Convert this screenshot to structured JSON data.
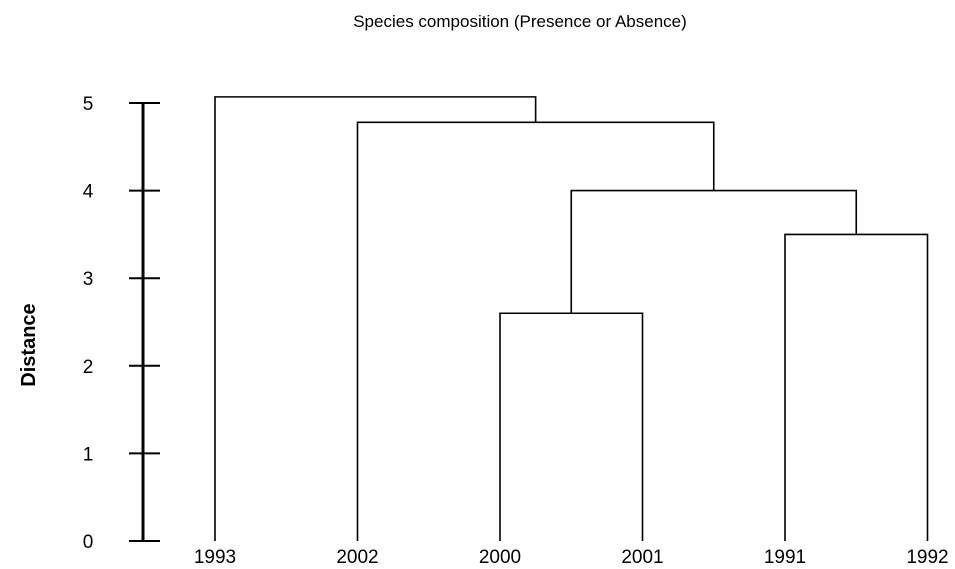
{
  "chart_data": {
    "type": "dendrogram",
    "title": "Species composition (Presence or Absence)",
    "ylabel": "Distance",
    "xlabel": "",
    "ylim": [
      0,
      5
    ],
    "yticks": [
      0,
      1,
      2,
      3,
      4,
      5
    ],
    "leaves": [
      "1993",
      "2002",
      "2000",
      "2001",
      "1991",
      "1992"
    ],
    "merges": [
      {
        "left": "2000",
        "right": "2001",
        "height": 2.6
      },
      {
        "left": "1991",
        "right": "1992",
        "height": 3.5
      },
      {
        "left": "2000+2001",
        "right": "1991+1992",
        "height": 4.0
      },
      {
        "left": "2002",
        "right": "2000+2001+1991+1992",
        "height": 4.78
      },
      {
        "left": "1993",
        "right": "2002+2000+2001+1991+1992",
        "height": 5.07
      }
    ]
  }
}
